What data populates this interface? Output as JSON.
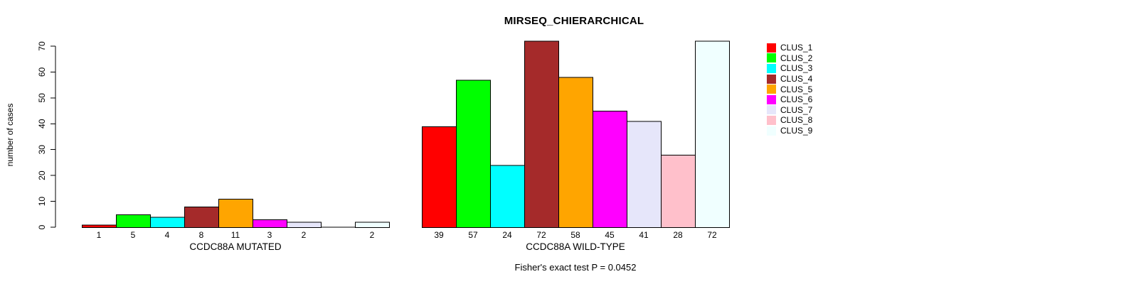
{
  "chart_data": {
    "type": "bar",
    "title": "MIRSEQ_CHIERARCHICAL",
    "ylabel": "number of cases",
    "xlabel": "",
    "ylim": [
      0,
      72
    ],
    "yticks": [
      0,
      10,
      20,
      30,
      40,
      50,
      60,
      70
    ],
    "grid": false,
    "legend_position": "right",
    "series_labels": [
      "CLUS_1",
      "CLUS_2",
      "CLUS_3",
      "CLUS_4",
      "CLUS_5",
      "CLUS_6",
      "CLUS_7",
      "CLUS_8",
      "CLUS_9"
    ],
    "colors": [
      "#FF0000",
      "#00FF00",
      "#00FFFF",
      "#A52A2A",
      "#FFA500",
      "#FF00FF",
      "#E6E6FA",
      "#FFC0CB",
      "#F0FFFF"
    ],
    "groups": [
      {
        "label": "CCDC88A MUTATED",
        "values": [
          1,
          5,
          4,
          8,
          11,
          3,
          2,
          0,
          2
        ]
      },
      {
        "label": "CCDC88A WILD-TYPE",
        "values": [
          39,
          57,
          24,
          72,
          58,
          45,
          41,
          28,
          72
        ]
      }
    ],
    "annotation": "Fisher's exact test P = 0.0452"
  }
}
